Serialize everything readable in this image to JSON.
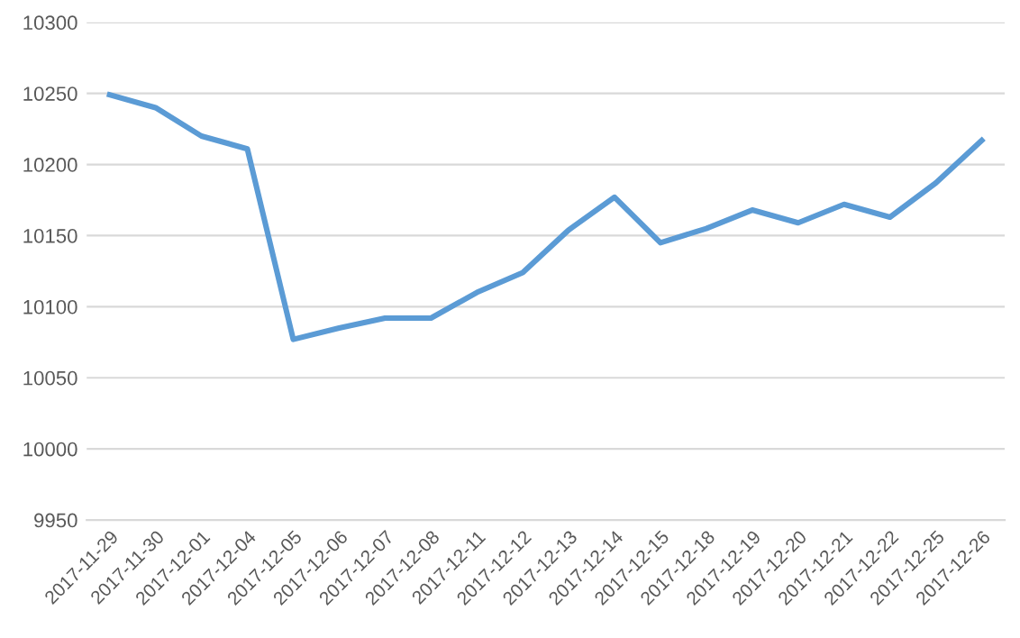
{
  "chart_data": {
    "type": "line",
    "categories": [
      "2017-11-29",
      "2017-11-30",
      "2017-12-01",
      "2017-12-04",
      "2017-12-05",
      "2017-12-06",
      "2017-12-07",
      "2017-12-08",
      "2017-12-11",
      "2017-12-12",
      "2017-12-13",
      "2017-12-14",
      "2017-12-15",
      "2017-12-18",
      "2017-12-19",
      "2017-12-20",
      "2017-12-21",
      "2017-12-22",
      "2017-12-25",
      "2017-12-26"
    ],
    "series": [
      {
        "color": "#5b9bd5",
        "values": [
          10249,
          10240,
          10220,
          10211,
          10077,
          10085,
          10092,
          10092,
          10110,
          10124,
          10154,
          10177,
          10145,
          10155,
          10168,
          10159,
          10172,
          10163,
          10187,
          10217
        ]
      }
    ],
    "ylim": [
      9950,
      10300
    ],
    "yticks": [
      9950,
      10000,
      10050,
      10100,
      10150,
      10200,
      10250,
      10300
    ],
    "grid": "y",
    "legend": false,
    "marker": "none",
    "line_style": "solid"
  }
}
